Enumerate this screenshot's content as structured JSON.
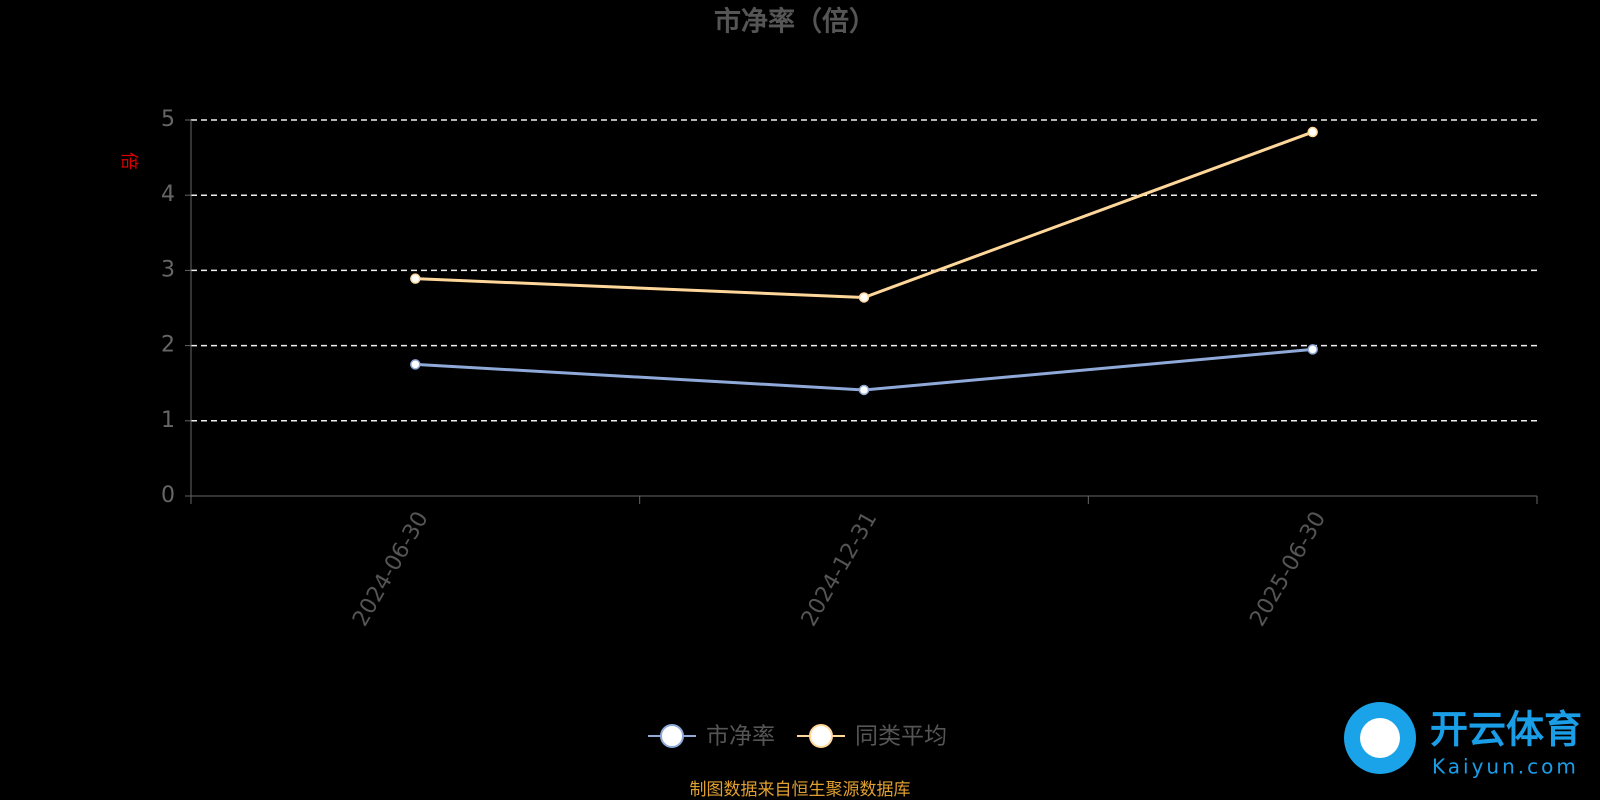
{
  "chart_data": {
    "type": "line",
    "title": "市净率（倍）",
    "y_label": "倍",
    "categories": [
      "2024-06-30",
      "2024-12-31",
      "2025-06-30"
    ],
    "series": [
      {
        "name": "市净率",
        "color": "#8fa9d9",
        "values": [
          1.75,
          1.41,
          1.95
        ]
      },
      {
        "name": "同类平均",
        "color": "#ffd79a",
        "values": [
          2.89,
          2.64,
          4.84
        ]
      }
    ],
    "ylim": [
      0,
      5
    ],
    "yticks": [
      0,
      1,
      2,
      3,
      4,
      5
    ],
    "grid": true,
    "legend": "bottom",
    "source": "制图数据来自恒生聚源数据库"
  },
  "watermark": {
    "brand": "开云体育",
    "site": "Kaiyun.com"
  }
}
